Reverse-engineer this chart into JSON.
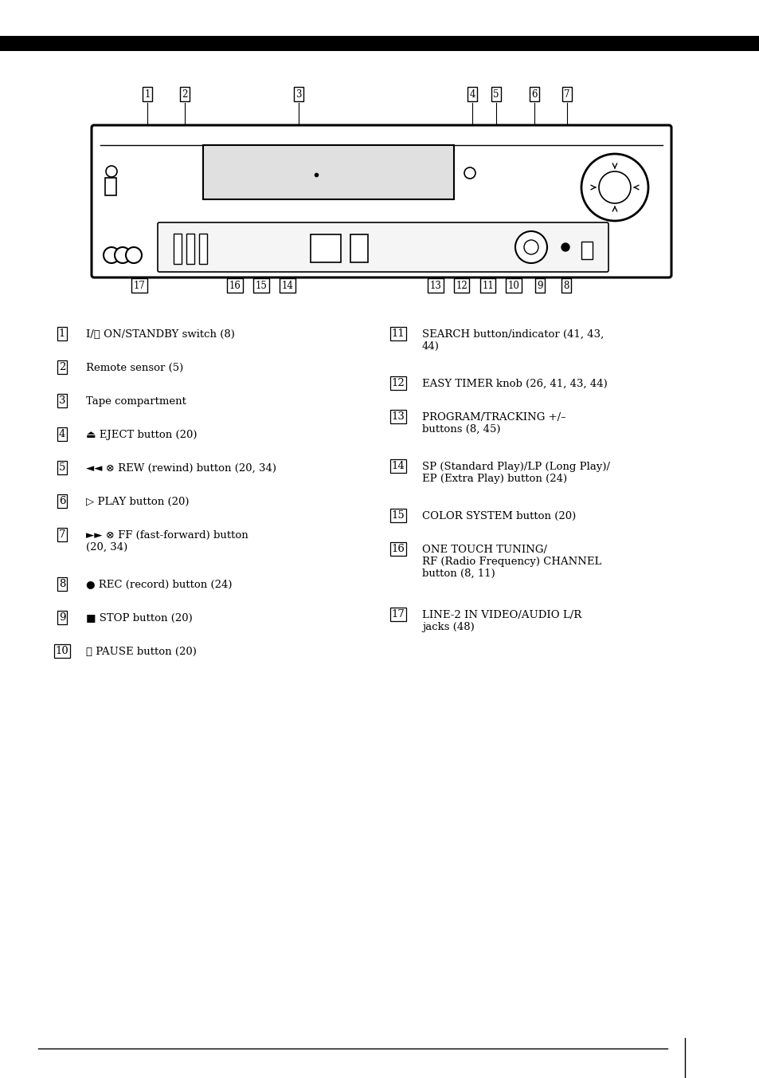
{
  "bg_color": "#ffffff",
  "top_bar_color": "#000000",
  "left_items": [
    {
      "num": "1",
      "text": "I/⏽ ON/STANDBY switch (8)"
    },
    {
      "num": "2",
      "text": "Remote sensor (5)"
    },
    {
      "num": "3",
      "text": "Tape compartment"
    },
    {
      "num": "4",
      "text": "⏏ EJECT button (20)"
    },
    {
      "num": "5",
      "text": "◄◄ ⊗ REW (rewind) button (20, 34)"
    },
    {
      "num": "6",
      "text": "▷ PLAY button (20)"
    },
    {
      "num": "7",
      "text": "►► ⊗ FF (fast-forward) button\n(20, 34)"
    },
    {
      "num": "8",
      "text": "● REC (record) button (24)"
    },
    {
      "num": "9",
      "text": "■ STOP button (20)"
    },
    {
      "num": "10",
      "text": "⏸ PAUSE button (20)"
    }
  ],
  "right_items": [
    {
      "num": "11",
      "text": "SEARCH button/indicator (41, 43,\n44)"
    },
    {
      "num": "12",
      "text": "EASY TIMER knob (26, 41, 43, 44)"
    },
    {
      "num": "13",
      "text": "PROGRAM/TRACKING +/–\nbuttons (8, 45)"
    },
    {
      "num": "14",
      "text": "SP (Standard Play)/LP (Long Play)/\nEP (Extra Play) button (24)"
    },
    {
      "num": "15",
      "text": "COLOR SYSTEM button (20)"
    },
    {
      "num": "16",
      "text": "ONE TOUCH TUNING/\nRF (Radio Frequency) CHANNEL\nbutton (8, 11)"
    },
    {
      "num": "17",
      "text": "LINE-2 IN VIDEO/AUDIO L/R\njacks (48)"
    }
  ]
}
